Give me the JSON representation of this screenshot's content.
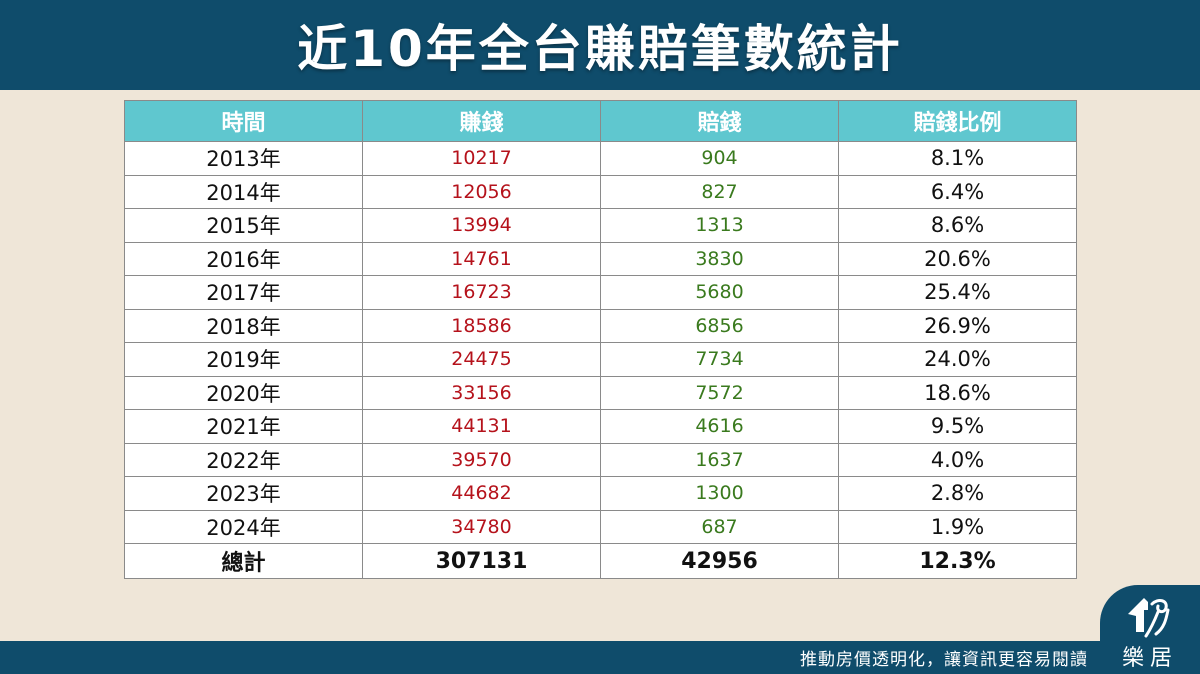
{
  "title": "近10年全台賺賠筆數統計",
  "table": {
    "headers": [
      "時間",
      "賺錢",
      "賠錢",
      "賠錢比例"
    ],
    "rows": [
      [
        "2013年",
        "10217",
        "904",
        "8.1%"
      ],
      [
        "2014年",
        "12056",
        "827",
        "6.4%"
      ],
      [
        "2015年",
        "13994",
        "1313",
        "8.6%"
      ],
      [
        "2016年",
        "14761",
        "3830",
        "20.6%"
      ],
      [
        "2017年",
        "16723",
        "5680",
        "25.4%"
      ],
      [
        "2018年",
        "18586",
        "6856",
        "26.9%"
      ],
      [
        "2019年",
        "24475",
        "7734",
        "24.0%"
      ],
      [
        "2020年",
        "33156",
        "7572",
        "18.6%"
      ],
      [
        "2021年",
        "44131",
        "4616",
        "9.5%"
      ],
      [
        "2022年",
        "39570",
        "1637",
        "4.0%"
      ],
      [
        "2023年",
        "44682",
        "1300",
        "2.8%"
      ],
      [
        "2024年",
        "34780",
        "687",
        "1.9%"
      ]
    ],
    "total": [
      "總計",
      "307131",
      "42956",
      "12.3%"
    ]
  },
  "footer": {
    "slogan": "推動房價透明化，讓資訊更容易閱讀",
    "logo_text": "樂居"
  },
  "colors": {
    "banner": "#0f4c6b",
    "header_bg": "#5fc7cf",
    "earn": "#b5121b",
    "loss": "#3a7a1e",
    "background": "#efe6d8"
  }
}
